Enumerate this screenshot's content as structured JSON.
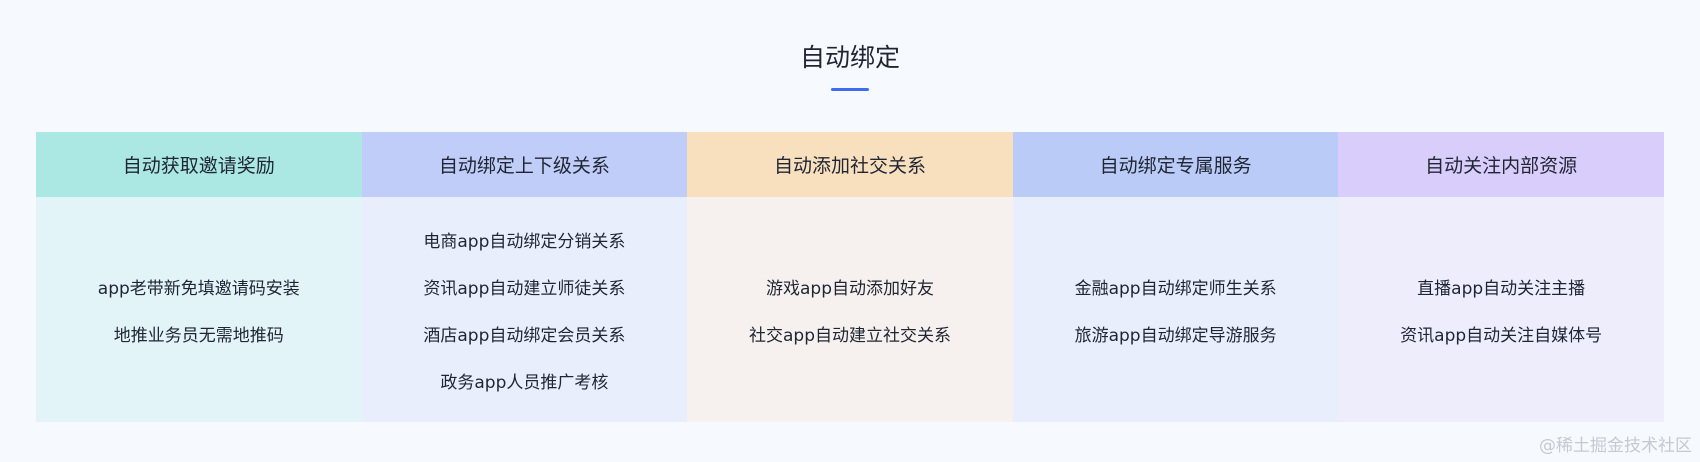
{
  "title": "自动绑定",
  "accent": "#3f6df0",
  "columns": [
    {
      "header": "自动获取邀请奖励",
      "head_color": "#abe8e4",
      "body_color": "#e3f4f8",
      "items": [
        "app老带新免填邀请码安装",
        "地推业务员无需地推码"
      ]
    },
    {
      "header": "自动绑定上下级关系",
      "head_color": "#bfcdf8",
      "body_color": "#e8eefc",
      "items": [
        "电商app自动绑定分销关系",
        "资讯app自动建立师徒关系",
        "酒店app自动绑定会员关系",
        "政务app人员推广考核"
      ]
    },
    {
      "header": "自动添加社交关系",
      "head_color": "#f8e0bf",
      "body_color": "#f6f1ee",
      "items": [
        "游戏app自动添加好友",
        "社交app自动建立社交关系"
      ]
    },
    {
      "header": "自动绑定专属服务",
      "head_color": "#bacbf7",
      "body_color": "#e8eefc",
      "items": [
        "金融app自动绑定师生关系",
        "旅游app自动绑定导游服务"
      ]
    },
    {
      "header": "自动关注内部资源",
      "head_color": "#d9cdfb",
      "body_color": "#eeedfc",
      "items": [
        "直播app自动关注主播",
        "资讯app自动关注自媒体号"
      ]
    }
  ],
  "watermark": "@稀土掘金技术社区"
}
